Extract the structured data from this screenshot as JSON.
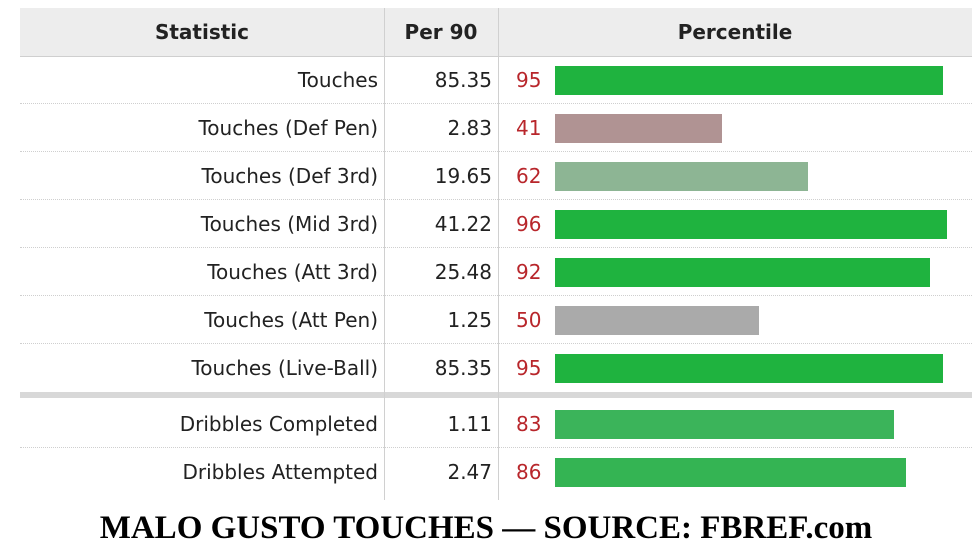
{
  "table": {
    "headers": {
      "statistic": "Statistic",
      "per90": "Per 90",
      "percentile": "Percentile"
    }
  },
  "caption": "MALO GUSTO TOUCHES — SOURCE: FBREF.com",
  "chart_data": {
    "type": "bar",
    "orientation": "horizontal",
    "categories": [
      "Touches",
      "Touches (Def Pen)",
      "Touches (Def 3rd)",
      "Touches (Mid 3rd)",
      "Touches (Att 3rd)",
      "Touches (Att Pen)",
      "Touches (Live-Ball)",
      "Dribbles Completed",
      "Dribbles Attempted"
    ],
    "per90": [
      "85.35",
      "2.83",
      "19.65",
      "41.22",
      "25.48",
      "1.25",
      "85.35",
      "1.11",
      "2.47"
    ],
    "values": [
      95,
      41,
      62,
      96,
      92,
      50,
      95,
      83,
      86
    ],
    "bar_colors": [
      "#1fb33f",
      "#b09393",
      "#8db594",
      "#1fb33f",
      "#1fb33f",
      "#aaaaaa",
      "#1fb33f",
      "#3bb45a",
      "#34b453"
    ],
    "xlim": [
      0,
      100
    ],
    "groups": [
      7,
      2
    ]
  }
}
